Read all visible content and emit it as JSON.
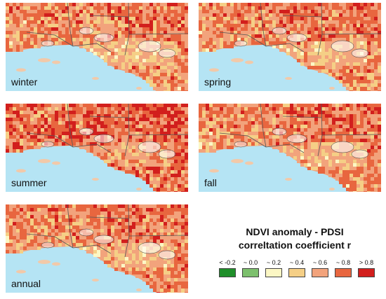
{
  "legend": {
    "title_line1": "NDVI anomaly - PDSI",
    "title_line2": "correltation coefficient r",
    "items": [
      {
        "label": "< -0.2",
        "color": "#1f8f2a"
      },
      {
        "label": "~ 0.0",
        "color": "#7cc06d"
      },
      {
        "label": "~ 0.2",
        "color": "#fcf7c4"
      },
      {
        "label": "~ 0.4",
        "color": "#f5cf86"
      },
      {
        "label": "~ 0.6",
        "color": "#f2a37c"
      },
      {
        "label": "~ 0.8",
        "color": "#e8663f"
      },
      {
        "label": "> 0.8",
        "color": "#d21f1d"
      }
    ]
  },
  "colors": {
    "ocean": "#b5e4f4",
    "island": "#f2c9a9",
    "boundary": "#555555"
  },
  "panels": [
    {
      "id": "winter",
      "label": "winter",
      "mix": [
        0.0,
        0.01,
        0.1,
        0.18,
        0.3,
        0.34,
        0.07
      ]
    },
    {
      "id": "spring",
      "label": "spring",
      "mix": [
        0.0,
        0.01,
        0.09,
        0.17,
        0.3,
        0.35,
        0.08
      ]
    },
    {
      "id": "summer",
      "label": "summer",
      "mix": [
        0.0,
        0.01,
        0.07,
        0.12,
        0.22,
        0.33,
        0.25
      ]
    },
    {
      "id": "fall",
      "label": "fall",
      "mix": [
        0.0,
        0.01,
        0.09,
        0.17,
        0.29,
        0.35,
        0.09
      ]
    },
    {
      "id": "annual",
      "label": "annual",
      "mix": [
        0.0,
        0.01,
        0.09,
        0.16,
        0.29,
        0.36,
        0.09
      ]
    }
  ]
}
